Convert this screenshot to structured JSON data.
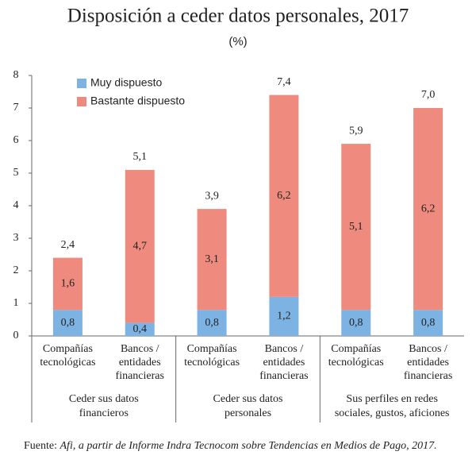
{
  "chart_data": {
    "type": "stacked_bar",
    "title": "Disposición a ceder datos personales, 2017",
    "subtitle": "(%)",
    "categories": [
      [
        "Compañías",
        "tecnológicas"
      ],
      [
        "Bancos /",
        "entidades",
        "financieras"
      ],
      [
        "Compañías",
        "tecnológicas"
      ],
      [
        "Bancos /",
        "entidades",
        "financieras"
      ],
      [
        "Compañías",
        "tecnológicas"
      ],
      [
        "Bancos /",
        "entidades",
        "financieras"
      ]
    ],
    "groups": [
      [
        "Ceder sus datos",
        "financieros"
      ],
      [
        "Ceder sus datos",
        "personales"
      ],
      [
        "Sus perfiles en redes",
        "sociales, gustos, aficiones"
      ]
    ],
    "series": [
      {
        "name": "Muy dispuesto",
        "color": "#7db3e3",
        "values": [
          0.8,
          0.4,
          0.8,
          1.2,
          0.8,
          0.8
        ],
        "value_labels": [
          "0,8",
          "0,4",
          "0,8",
          "1,2",
          "0,8",
          "0,8"
        ]
      },
      {
        "name": "Bastante dispuesto",
        "color": "#ef8a7e",
        "values": [
          1.6,
          4.7,
          3.1,
          6.2,
          5.1,
          6.2
        ],
        "value_labels": [
          "1,6",
          "4,7",
          "3,1",
          "6,2",
          "5,1",
          "6,2"
        ]
      }
    ],
    "totals": [
      2.4,
      5.1,
      3.9,
      7.4,
      5.9,
      7.0
    ],
    "total_labels": [
      "2,4",
      "5,1",
      "3,9",
      "7,4",
      "5,9",
      "7,0"
    ],
    "ylim": [
      0,
      8
    ],
    "yticks": [
      0,
      1,
      2,
      3,
      4,
      5,
      6,
      7,
      8
    ],
    "legend": "top-left",
    "source_label": "Fuente:",
    "source": "Afi, a partir de Informe Indra Tecnocom sobre Tendencias en Medios de Pago, 2017."
  }
}
